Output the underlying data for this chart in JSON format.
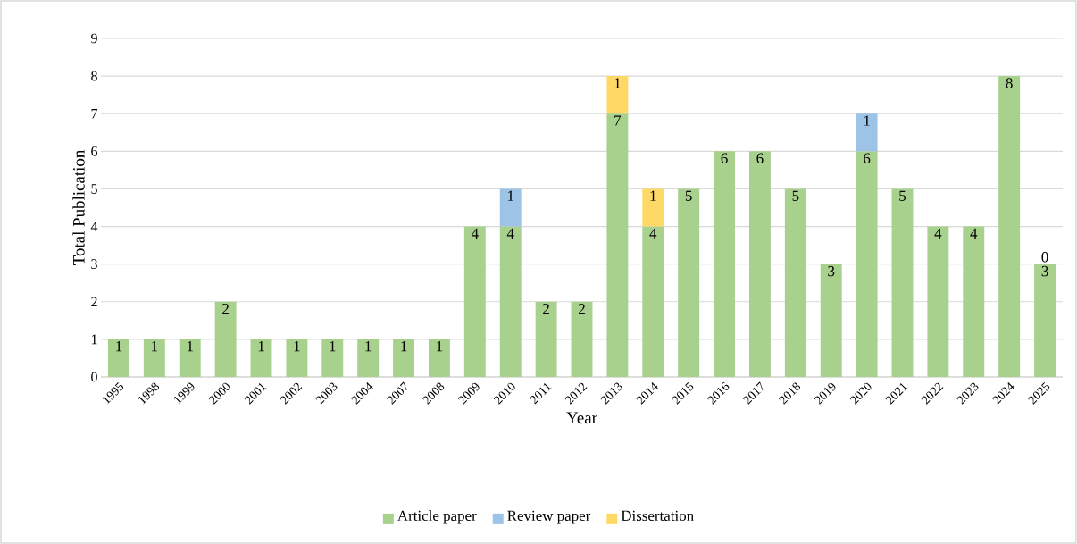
{
  "chart_data": {
    "type": "bar",
    "stacked": true,
    "xlabel": "Year",
    "ylabel": "Total Publication",
    "categories": [
      "1995",
      "1998",
      "1999",
      "2000",
      "2001",
      "2002",
      "2003",
      "2004",
      "2007",
      "2008",
      "2009",
      "2010",
      "2011",
      "2012",
      "2013",
      "2014",
      "2015",
      "2016",
      "2017",
      "2018",
      "2019",
      "2020",
      "2021",
      "2022",
      "2023",
      "2024",
      "2025"
    ],
    "series": [
      {
        "name": "Article paper",
        "color": "#a9d18e",
        "values": [
          1,
          1,
          1,
          2,
          1,
          1,
          1,
          1,
          1,
          1,
          4,
          4,
          2,
          2,
          7,
          4,
          5,
          6,
          6,
          5,
          3,
          6,
          5,
          4,
          4,
          8,
          3
        ]
      },
      {
        "name": "Review paper",
        "color": "#9dc3e6",
        "values": [
          null,
          null,
          null,
          null,
          null,
          null,
          null,
          null,
          null,
          null,
          null,
          1,
          null,
          null,
          null,
          null,
          null,
          null,
          null,
          null,
          null,
          1,
          null,
          null,
          null,
          null,
          0
        ]
      },
      {
        "name": "Dissertation",
        "color": "#ffd966",
        "values": [
          null,
          null,
          null,
          null,
          null,
          null,
          null,
          null,
          null,
          null,
          null,
          null,
          null,
          null,
          1,
          1,
          null,
          null,
          null,
          null,
          null,
          null,
          null,
          null,
          null,
          null,
          null
        ]
      }
    ],
    "data_labels": true,
    "ylim": [
      0,
      9
    ],
    "yticks": [
      0,
      1,
      2,
      3,
      4,
      5,
      6,
      7,
      8,
      9
    ],
    "grid": "y",
    "legend": "bottom"
  }
}
